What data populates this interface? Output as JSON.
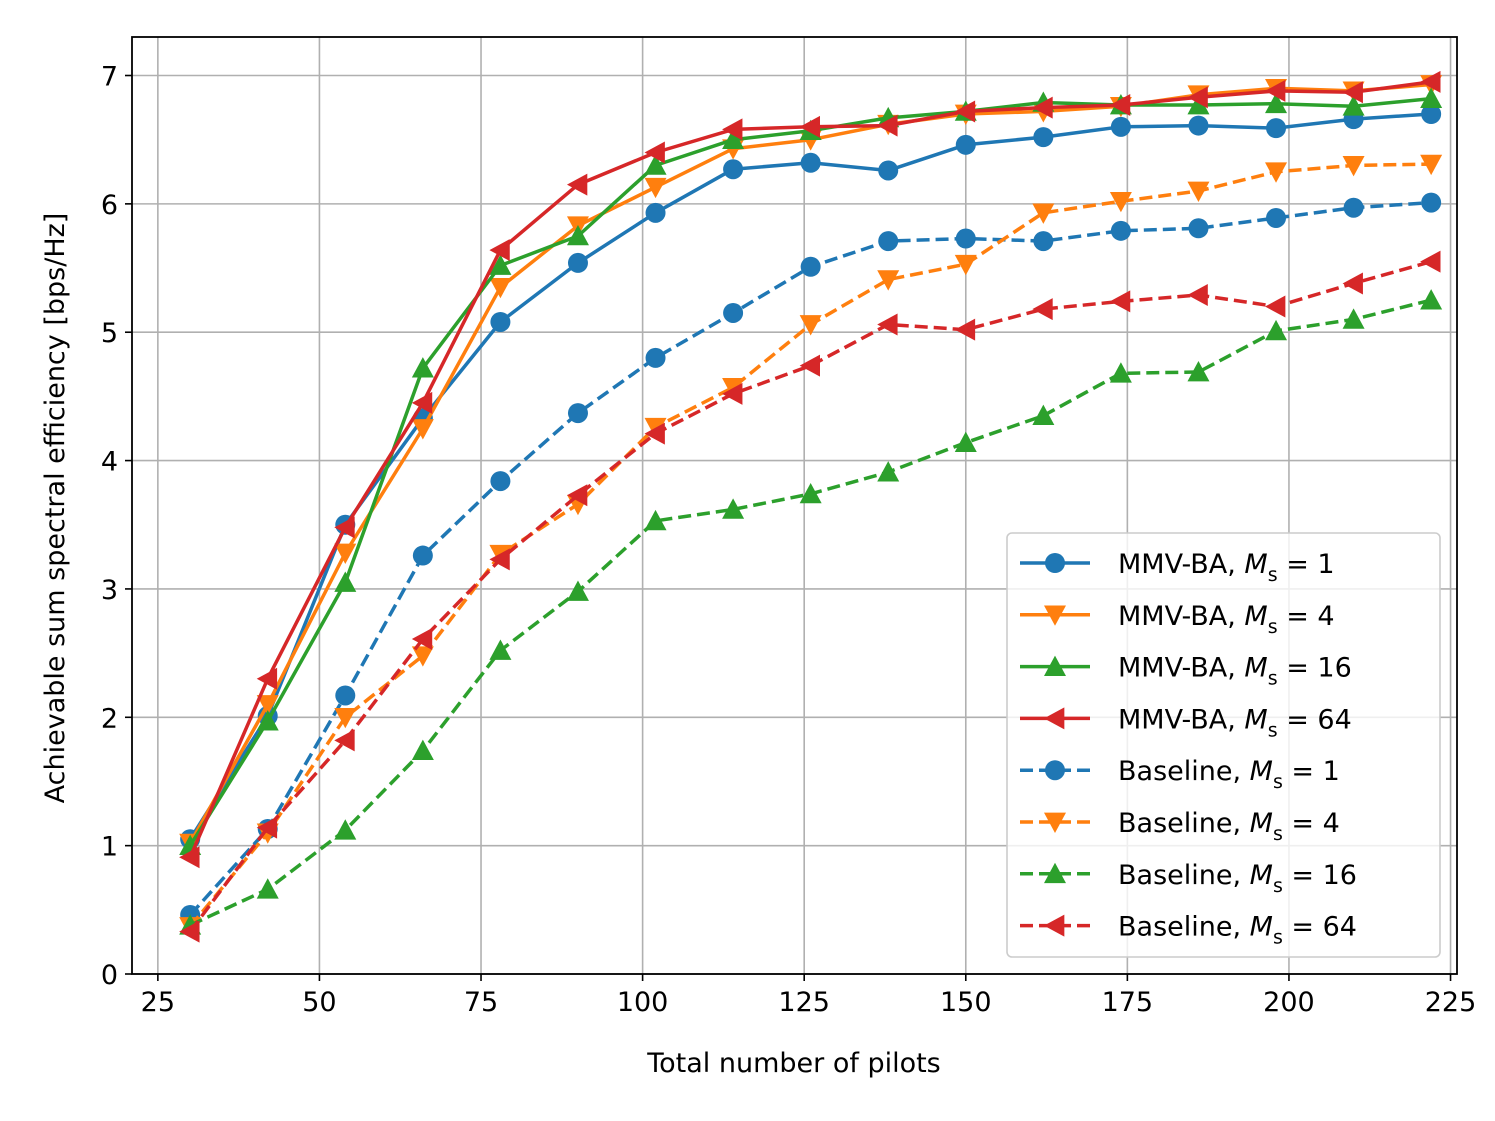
{
  "chart_data": {
    "type": "line",
    "title": "",
    "xlabel": "Total number of pilots",
    "ylabel": "Achievable sum spectral efficiency [bps/Hz]",
    "xlim": [
      21,
      226
    ],
    "ylim": [
      0,
      7.3
    ],
    "xticks": [
      25,
      50,
      75,
      100,
      125,
      150,
      175,
      200,
      225
    ],
    "yticks": [
      0,
      1,
      2,
      3,
      4,
      5,
      6,
      7
    ],
    "grid": true,
    "legend_position": "lower-right",
    "x": [
      30,
      42,
      54,
      66,
      78,
      90,
      102,
      114,
      126,
      138,
      150,
      162,
      174,
      186,
      198,
      210,
      222
    ],
    "series": [
      {
        "name": "MMV-BA, M_s = 1",
        "method": "MMV-BA, ",
        "sym": "M",
        "sub": "s",
        "eq": " = 1",
        "color": "#1f77b4",
        "dash": "solid",
        "marker": "circle",
        "values": [
          1.05,
          2.01,
          3.5,
          4.33,
          5.08,
          5.54,
          5.93,
          6.27,
          6.32,
          6.26,
          6.46,
          6.52,
          6.6,
          6.61,
          6.59,
          6.66,
          6.7
        ]
      },
      {
        "name": "MMV-BA, M_s = 4",
        "method": "MMV-BA, ",
        "sym": "M",
        "sub": "s",
        "eq": " = 4",
        "color": "#ff7f0e",
        "dash": "solid",
        "marker": "triangle-down",
        "values": [
          1.02,
          2.1,
          3.28,
          4.25,
          5.35,
          5.83,
          6.13,
          6.43,
          6.5,
          6.62,
          6.7,
          6.72,
          6.76,
          6.85,
          6.9,
          6.88,
          6.93
        ]
      },
      {
        "name": "MMV-BA, M_s = 16",
        "method": "MMV-BA, ",
        "sym": "M",
        "sub": "s",
        "eq": " = 16",
        "color": "#2ca02c",
        "dash": "solid",
        "marker": "triangle-up",
        "values": [
          1.0,
          1.97,
          3.05,
          4.72,
          5.52,
          5.75,
          6.3,
          6.5,
          6.57,
          6.67,
          6.72,
          6.79,
          6.77,
          6.77,
          6.78,
          6.76,
          6.82
        ]
      },
      {
        "name": "MMV-BA, M_s = 64",
        "method": "MMV-BA, ",
        "sym": "M",
        "sub": "s",
        "eq": " = 64",
        "color": "#d62728",
        "dash": "solid",
        "marker": "triangle-left",
        "values": [
          0.91,
          2.3,
          3.48,
          4.45,
          5.64,
          6.15,
          6.4,
          6.58,
          6.6,
          6.61,
          6.72,
          6.75,
          6.77,
          6.83,
          6.88,
          6.87,
          6.95
        ]
      },
      {
        "name": "Baseline, M_s = 1",
        "method": "Baseline, ",
        "sym": "M",
        "sub": "s",
        "eq": " = 1",
        "color": "#1f77b4",
        "dash": "dashed",
        "marker": "circle",
        "values": [
          0.46,
          1.13,
          2.17,
          3.26,
          3.84,
          4.37,
          4.8,
          5.15,
          5.51,
          5.71,
          5.73,
          5.71,
          5.79,
          5.81,
          5.89,
          5.97,
          6.01
        ]
      },
      {
        "name": "Baseline, M_s = 4",
        "method": "Baseline, ",
        "sym": "M",
        "sub": "s",
        "eq": " = 4",
        "color": "#ff7f0e",
        "dash": "dashed",
        "marker": "triangle-down",
        "values": [
          0.37,
          1.1,
          2.0,
          2.48,
          3.27,
          3.66,
          4.26,
          4.57,
          5.06,
          5.41,
          5.53,
          5.93,
          6.02,
          6.1,
          6.25,
          6.3,
          6.31
        ]
      },
      {
        "name": "Baseline, M_s = 16",
        "method": "Baseline, ",
        "sym": "M",
        "sub": "s",
        "eq": " = 16",
        "color": "#2ca02c",
        "dash": "dashed",
        "marker": "triangle-up",
        "values": [
          0.38,
          0.66,
          1.12,
          1.74,
          2.52,
          2.98,
          3.53,
          3.62,
          3.74,
          3.91,
          4.14,
          4.35,
          4.68,
          4.69,
          5.01,
          5.1,
          5.25
        ]
      },
      {
        "name": "Baseline, M_s = 64",
        "method": "Baseline, ",
        "sym": "M",
        "sub": "s",
        "eq": " = 64",
        "color": "#d62728",
        "dash": "dashed",
        "marker": "triangle-left",
        "values": [
          0.33,
          1.14,
          1.82,
          2.61,
          3.23,
          3.73,
          4.21,
          4.52,
          4.74,
          5.06,
          5.02,
          5.18,
          5.24,
          5.29,
          5.2,
          5.38,
          5.55
        ]
      }
    ]
  }
}
